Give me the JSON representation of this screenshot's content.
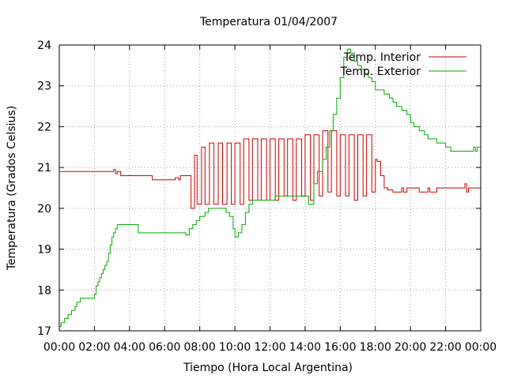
{
  "chart_data": {
    "type": "line",
    "title": "Temperatura 01/04/2007",
    "xlabel": "Tiempo (Hora Local Argentina)",
    "ylabel": "Temperatura (Grados Celsius)",
    "xlim": [
      0,
      24
    ],
    "ylim": [
      17,
      24
    ],
    "grid": true,
    "legend_position": "top-right",
    "x_tick_labels": [
      "00:00",
      "02:00",
      "04:00",
      "06:00",
      "08:00",
      "10:00",
      "12:00",
      "14:00",
      "16:00",
      "18:00",
      "20:00",
      "22:00",
      "00:00"
    ],
    "y_tick_labels": [
      "17",
      "18",
      "19",
      "20",
      "21",
      "22",
      "23",
      "24"
    ],
    "series": [
      {
        "name": "Temp. Interior",
        "color": "#cc0000",
        "step": true,
        "x": [
          0.0,
          3.0,
          3.1,
          3.2,
          3.3,
          3.5,
          5.2,
          5.3,
          6.5,
          6.6,
          6.8,
          6.9,
          7.0,
          7.3,
          7.5,
          7.7,
          7.85,
          8.1,
          8.3,
          8.55,
          8.8,
          9.05,
          9.3,
          9.55,
          9.8,
          10.0,
          10.3,
          10.5,
          10.8,
          11.0,
          11.3,
          11.5,
          11.8,
          12.0,
          12.3,
          12.5,
          12.8,
          13.0,
          13.3,
          13.5,
          13.8,
          14.0,
          14.3,
          14.5,
          14.8,
          15.0,
          15.3,
          15.5,
          15.8,
          16.0,
          16.3,
          16.5,
          16.8,
          17.0,
          17.3,
          17.5,
          17.8,
          18.0,
          18.1,
          18.3,
          18.5,
          18.7,
          19.0,
          19.5,
          19.6,
          19.8,
          20.0,
          20.5,
          21.0,
          21.1,
          21.5,
          22.0,
          22.1,
          22.5,
          23.0,
          23.1,
          23.2,
          23.3,
          23.5,
          24.0
        ],
        "values": [
          20.9,
          20.9,
          20.95,
          20.85,
          20.9,
          20.8,
          20.8,
          20.7,
          20.7,
          20.75,
          20.7,
          20.8,
          20.8,
          20.8,
          20.0,
          21.3,
          20.1,
          21.5,
          20.1,
          21.6,
          20.1,
          21.6,
          20.1,
          21.6,
          20.1,
          21.6,
          20.1,
          21.7,
          20.2,
          21.7,
          20.2,
          21.7,
          20.2,
          21.7,
          20.2,
          21.7,
          20.3,
          21.7,
          20.2,
          21.7,
          20.3,
          21.8,
          20.2,
          21.8,
          20.3,
          21.9,
          20.4,
          21.9,
          20.3,
          21.8,
          20.3,
          21.8,
          20.2,
          21.8,
          20.3,
          21.8,
          20.4,
          21.2,
          21.15,
          20.8,
          20.5,
          20.45,
          20.4,
          20.5,
          20.4,
          20.5,
          20.5,
          20.4,
          20.5,
          20.4,
          20.5,
          20.5,
          20.5,
          20.5,
          20.5,
          20.6,
          20.4,
          20.5,
          20.5,
          20.5
        ]
      },
      {
        "name": "Temp. Exterior",
        "color": "#00aa00",
        "step": true,
        "x": [
          0.0,
          0.1,
          0.3,
          0.5,
          0.7,
          0.9,
          1.0,
          1.2,
          1.5,
          1.8,
          2.0,
          2.1,
          2.2,
          2.3,
          2.4,
          2.5,
          2.6,
          2.7,
          2.8,
          2.9,
          3.0,
          3.1,
          3.2,
          3.3,
          3.5,
          3.7,
          4.0,
          4.5,
          4.7,
          5.0,
          5.5,
          6.0,
          6.5,
          7.0,
          7.2,
          7.4,
          7.6,
          7.8,
          8.0,
          8.3,
          8.5,
          8.8,
          9.0,
          9.3,
          9.5,
          9.7,
          9.9,
          10.0,
          10.2,
          10.4,
          10.6,
          10.8,
          11.0,
          11.5,
          12.0,
          12.3,
          12.6,
          13.0,
          13.5,
          14.0,
          14.2,
          14.5,
          14.7,
          15.0,
          15.2,
          15.4,
          15.6,
          15.8,
          16.0,
          16.2,
          16.4,
          16.6,
          16.8,
          17.0,
          17.2,
          17.4,
          17.6,
          17.8,
          18.0,
          18.5,
          18.8,
          19.0,
          19.2,
          19.5,
          19.8,
          20.0,
          20.2,
          20.5,
          20.8,
          21.0,
          21.5,
          22.0,
          22.3,
          22.6,
          23.0,
          23.5,
          23.6,
          23.7,
          23.8,
          24.0
        ],
        "values": [
          17.1,
          17.2,
          17.3,
          17.4,
          17.5,
          17.6,
          17.7,
          17.8,
          17.8,
          17.8,
          17.9,
          18.1,
          18.2,
          18.3,
          18.4,
          18.5,
          18.6,
          18.7,
          18.9,
          19.1,
          19.3,
          19.4,
          19.5,
          19.6,
          19.6,
          19.6,
          19.6,
          19.4,
          19.4,
          19.4,
          19.4,
          19.4,
          19.4,
          19.4,
          19.35,
          19.5,
          19.6,
          19.7,
          19.8,
          19.9,
          20.0,
          20.0,
          20.0,
          20.0,
          19.9,
          19.8,
          19.5,
          19.3,
          19.4,
          19.6,
          19.9,
          20.1,
          20.2,
          20.2,
          20.2,
          20.3,
          20.3,
          20.3,
          20.3,
          20.3,
          20.1,
          20.6,
          20.9,
          21.2,
          21.5,
          21.9,
          22.3,
          22.7,
          23.2,
          23.7,
          23.9,
          23.8,
          23.6,
          23.5,
          23.4,
          23.3,
          23.2,
          23.1,
          22.9,
          22.8,
          22.7,
          22.6,
          22.5,
          22.4,
          22.3,
          22.1,
          22.0,
          21.9,
          21.8,
          21.7,
          21.6,
          21.5,
          21.4,
          21.4,
          21.4,
          21.4,
          21.5,
          21.4,
          21.5,
          21.5
        ]
      }
    ]
  }
}
